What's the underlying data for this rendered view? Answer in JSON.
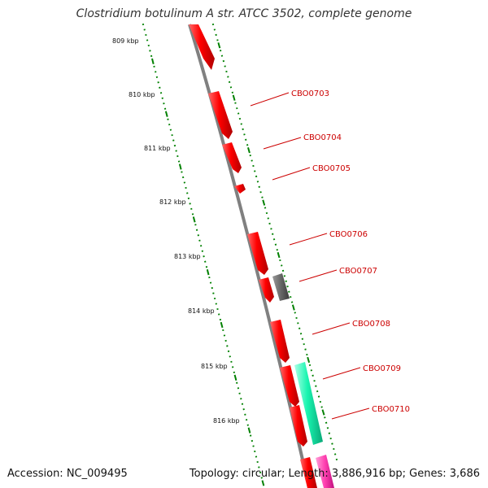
{
  "title": "Clostridium botulinum A str. ATCC 3502, complete genome",
  "accession_text": "Accession: NC_009495",
  "topology_text": "Topology: circular; Length: 3,886,916 bp; Genes: 3,686",
  "colors": {
    "backbone": "#808080",
    "tick": "#008000",
    "gene_label": "#cc0000",
    "cds_red": "#ff0000",
    "cds_gray": "#666666",
    "cds_green": "#19f5b0",
    "cds_pink": "#ff40b0"
  },
  "scale_ticks": [
    {
      "kbp": 809,
      "label": "809 kbp"
    },
    {
      "kbp": 810,
      "label": "810 kbp"
    },
    {
      "kbp": 811,
      "label": "811 kbp"
    },
    {
      "kbp": 812,
      "label": "812 kbp"
    },
    {
      "kbp": 813,
      "label": "813 kbp"
    },
    {
      "kbp": 814,
      "label": "814 kbp"
    },
    {
      "kbp": 815,
      "label": "815 kbp"
    },
    {
      "kbp": 816,
      "label": "816 kbp"
    }
  ],
  "gene_labels": [
    "CBO0703",
    "CBO0704",
    "CBO0705",
    "CBO0706",
    "CBO0707",
    "CBO0708",
    "CBO0709",
    "CBO0710"
  ]
}
